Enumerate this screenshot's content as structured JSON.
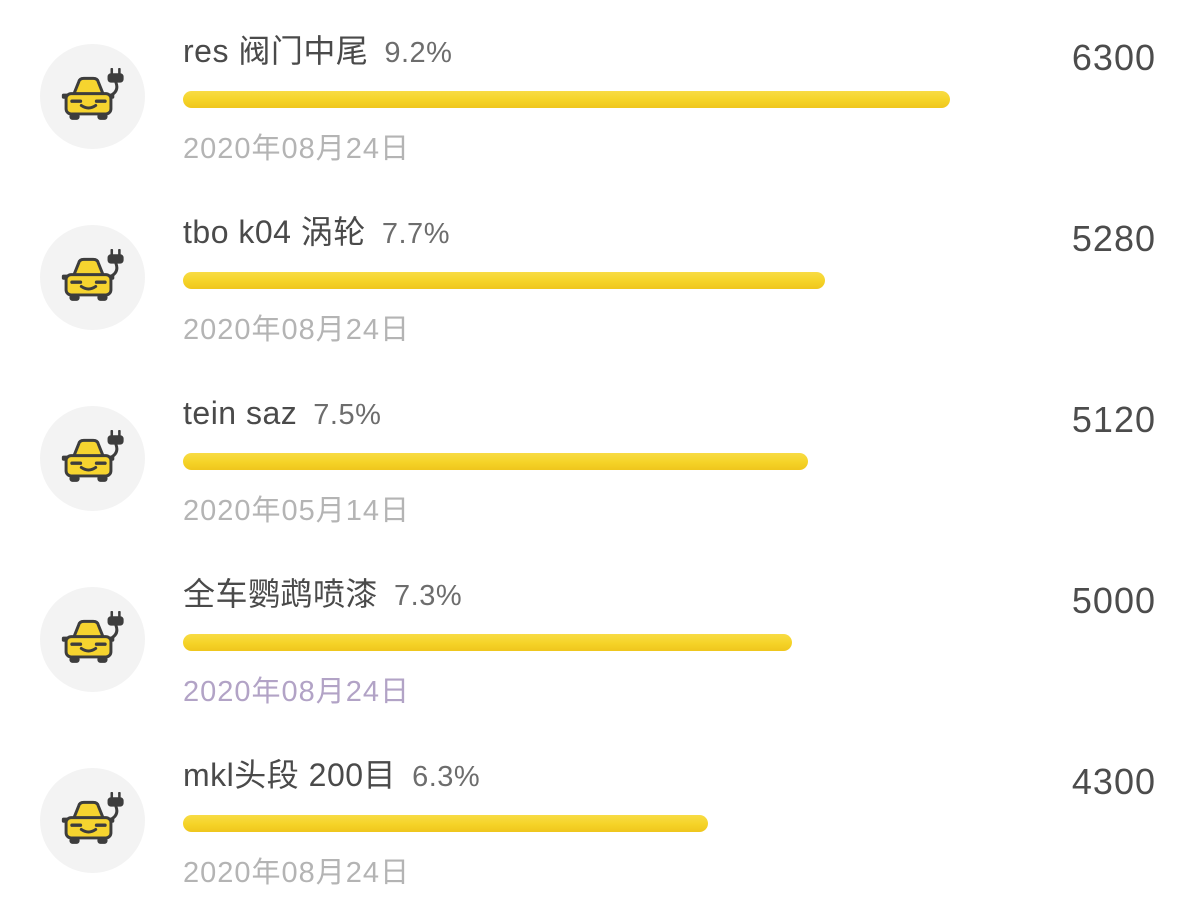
{
  "page": {
    "background": "#ffffff"
  },
  "colors": {
    "bar_yellow": "#f5d327",
    "avatar_circle_bg": "#f3f3f3",
    "car_icon_yellow": "#f6d42f",
    "car_icon_outline": "#3d3d3d",
    "title_text": "#4a4a4a",
    "date_text_default": "#b4b4b4",
    "date_text_highlighted": "#b2a3c6",
    "count_text": "#4c4c4c"
  },
  "icons": {
    "item_icon": "electric-car-icon"
  },
  "items": [
    {
      "title": "res 阀门中尾",
      "percent_label": "9.2%",
      "percent_value": 9.2,
      "count": "6300",
      "date": "2020年08月24日",
      "date_color": "#b4b4b4"
    },
    {
      "title": "tbo k04 涡轮",
      "percent_label": "7.7%",
      "percent_value": 7.7,
      "count": "5280",
      "date": "2020年08月24日",
      "date_color": "#b4b4b4"
    },
    {
      "title": "tein saz",
      "percent_label": "7.5%",
      "percent_value": 7.5,
      "count": "5120",
      "date": "2020年05月14日",
      "date_color": "#b4b4b4"
    },
    {
      "title": "全车鹦鹉喷漆",
      "percent_label": "7.3%",
      "percent_value": 7.3,
      "count": "5000",
      "date": "2020年08月24日",
      "date_color": "#b2a3c6"
    },
    {
      "title": "mkl头段 200目",
      "percent_label": "6.3%",
      "percent_value": 6.3,
      "count": "4300",
      "date": "2020年08月24日",
      "date_color": "#b4b4b4"
    }
  ]
}
